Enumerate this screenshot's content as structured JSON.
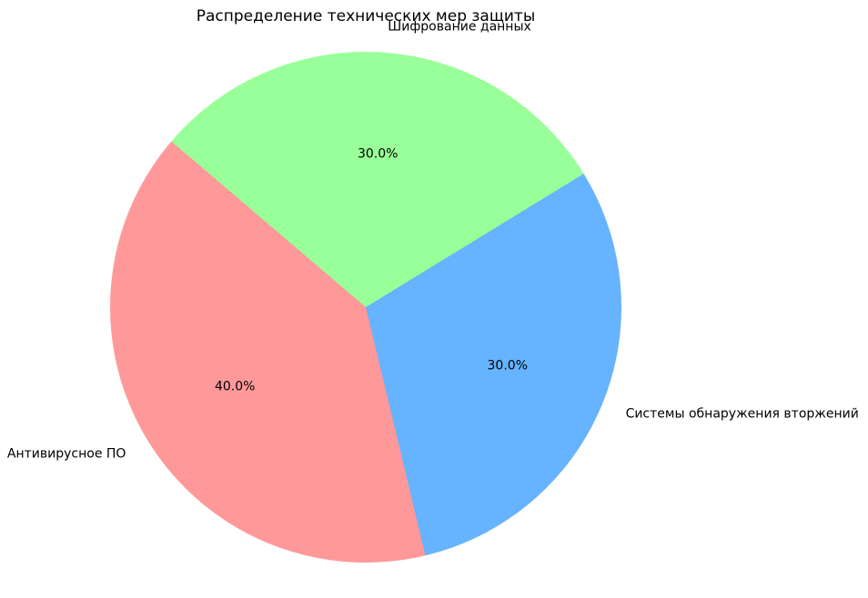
{
  "chart_data": {
    "type": "pie",
    "title": "Распределение технических мер защиты",
    "slices": [
      {
        "label": "Шифрование данных",
        "value": 30.0,
        "pct_label": "30.0%",
        "color": "#99ff99"
      },
      {
        "label": "Системы обнаружения вторжений",
        "value": 30.0,
        "pct_label": "30.0%",
        "color": "#66b3ff"
      },
      {
        "label": "Антивирусное ПО",
        "value": 40.0,
        "pct_label": "40.0%",
        "color": "#ff9999"
      }
    ],
    "start_angle_css_deg": -49.5,
    "direction": "clockwise",
    "legend": "none",
    "grid": "off",
    "background": "#ffffff",
    "text_color": "#000000"
  }
}
